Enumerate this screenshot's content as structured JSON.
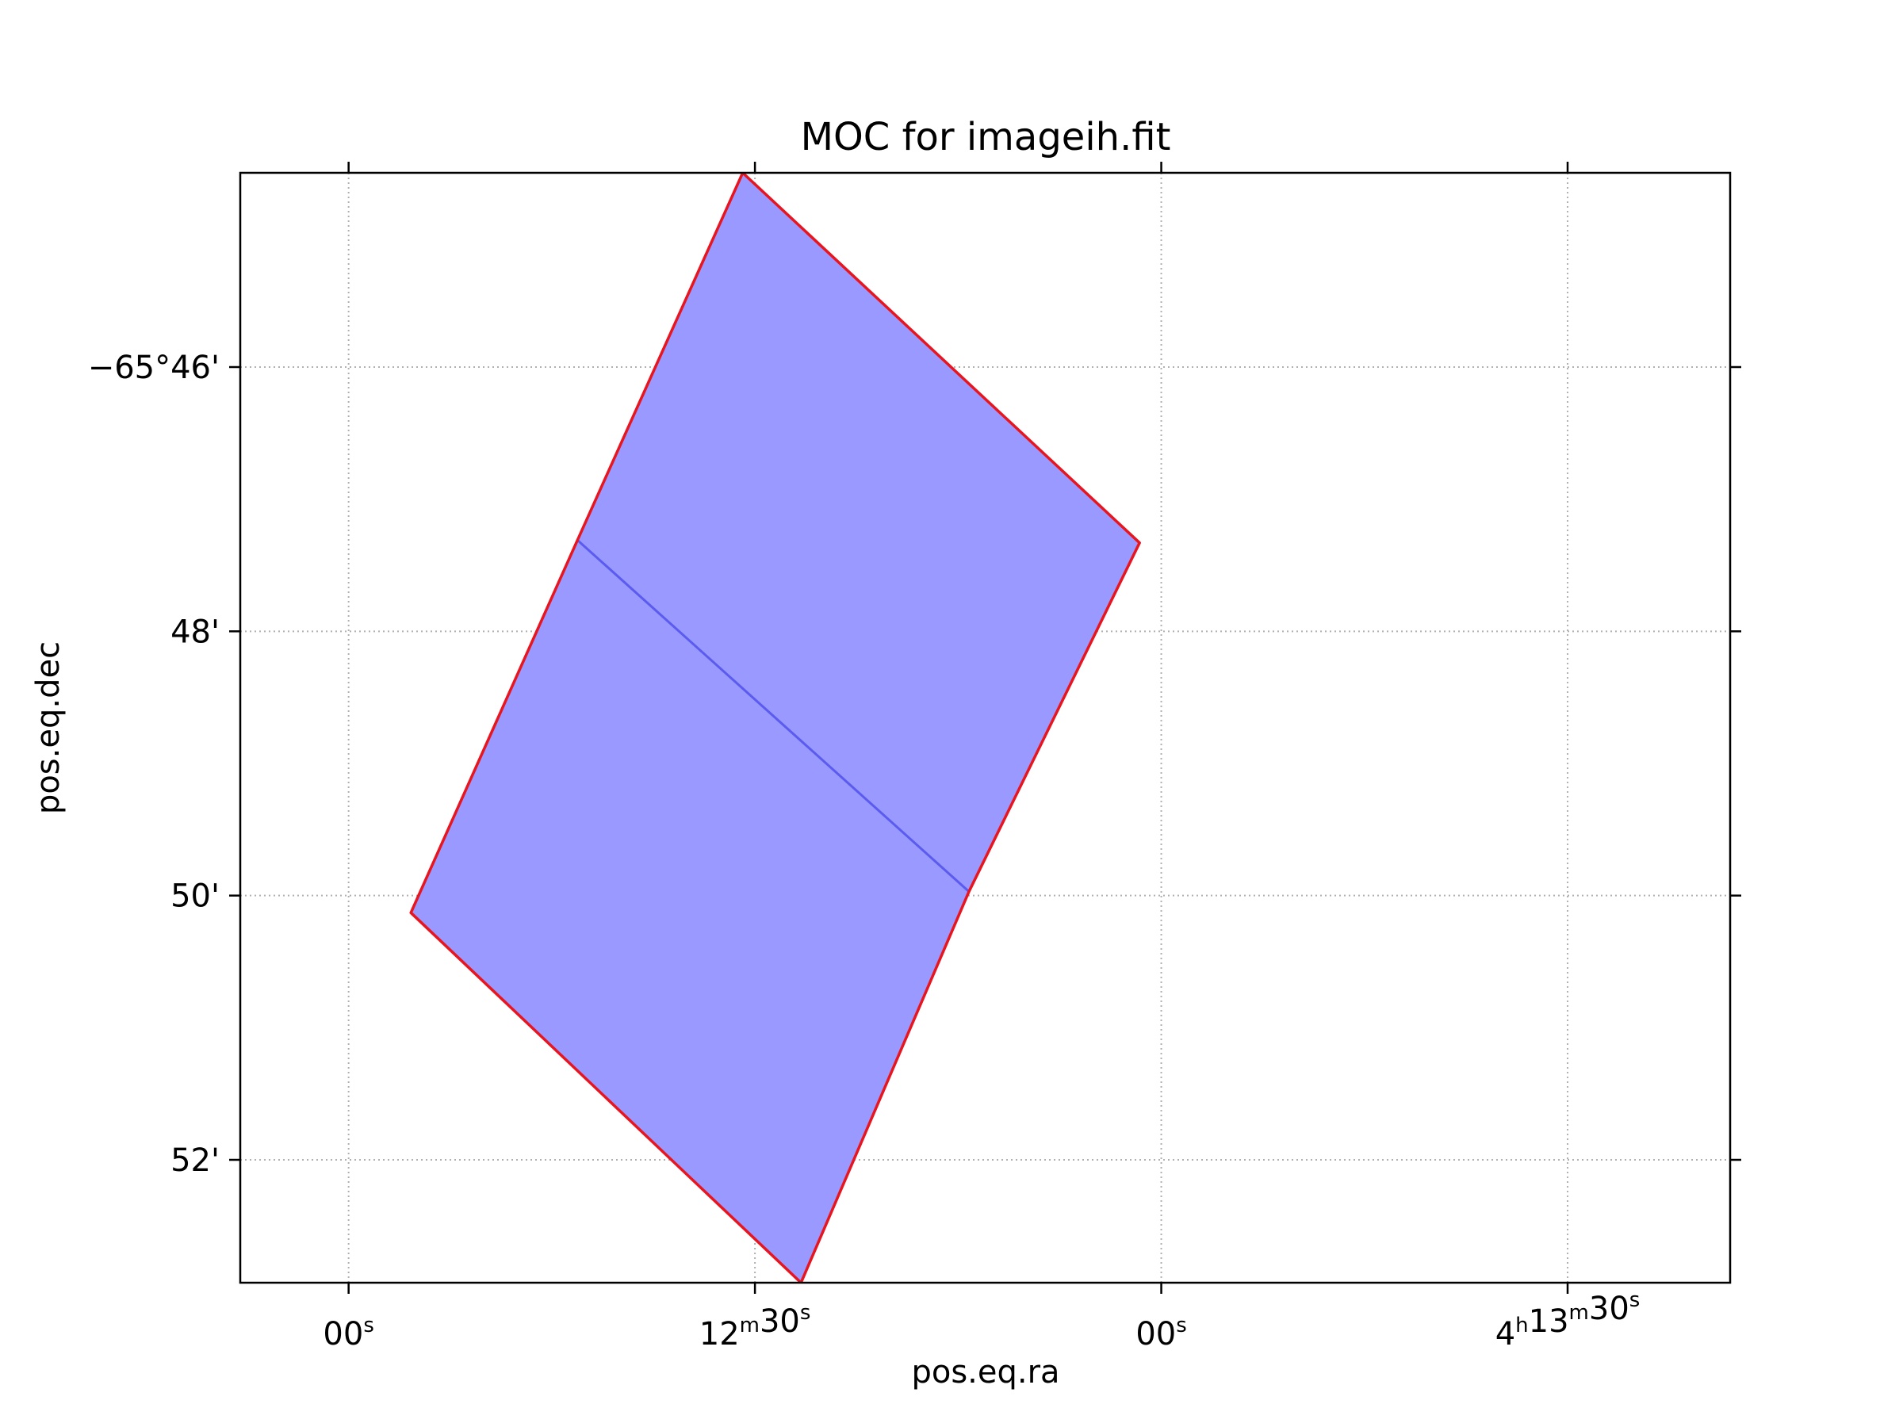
{
  "chart_data": {
    "type": "area",
    "title": "MOC for imageih.fit",
    "xlabel": "pos.eq.ra",
    "ylabel": "pos.eq.dec",
    "x_ticks": [
      {
        "h": "4",
        "m": "13",
        "s": "30",
        "ra_sec": 810
      },
      {
        "h": "",
        "m": "",
        "s": "00",
        "ra_sec": 840
      },
      {
        "h": "",
        "m": "12",
        "s": "30",
        "ra_sec": 870
      },
      {
        "h": "",
        "m": "",
        "s": "00",
        "ra_sec": 900
      }
    ],
    "y_ticks": [
      {
        "label": "−65°46'",
        "dec_arcmin": -46
      },
      {
        "label": "48'",
        "dec_arcmin": -48
      },
      {
        "label": "50'",
        "dec_arcmin": -50
      },
      {
        "label": "52'",
        "dec_arcmin": -52
      }
    ],
    "xlim": [
      798,
      908
    ],
    "ylim": [
      -52.93,
      -44.53
    ],
    "x_direction": "decreasing-right",
    "grid": true,
    "fill_color": "#9999ff",
    "edge_color": "#e8141e",
    "inner_edge_color": "#5b5bf0",
    "cells": [
      {
        "vertices": [
          [
            870.9,
            -44.53
          ],
          [
            841.6,
            -47.33
          ],
          [
            854.2,
            -49.97
          ],
          [
            883.1,
            -47.31
          ]
        ]
      },
      {
        "vertices": [
          [
            883.1,
            -47.31
          ],
          [
            854.2,
            -49.97
          ],
          [
            866.6,
            -52.93
          ],
          [
            895.4,
            -50.13
          ]
        ]
      }
    ]
  }
}
